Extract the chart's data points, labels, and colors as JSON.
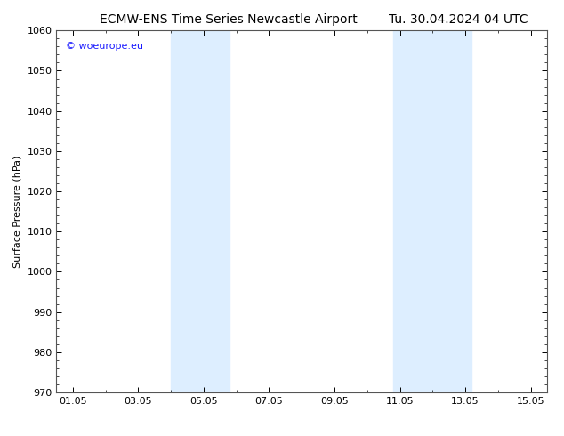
{
  "title_left": "ECMW-ENS Time Series Newcastle Airport",
  "title_right": "Tu. 30.04.2024 04 UTC",
  "ylabel": "Surface Pressure (hPa)",
  "ylim": [
    970,
    1060
  ],
  "yticks": [
    970,
    980,
    990,
    1000,
    1010,
    1020,
    1030,
    1040,
    1050,
    1060
  ],
  "xlim": [
    0.5,
    15.5
  ],
  "xtick_labels": [
    "01.05",
    "03.05",
    "05.05",
    "07.05",
    "09.05",
    "11.05",
    "13.05",
    "15.05"
  ],
  "xtick_positions": [
    1,
    3,
    5,
    7,
    9,
    11,
    13,
    15
  ],
  "shaded_regions": [
    {
      "xstart": 4.0,
      "xend": 5.8
    },
    {
      "xstart": 10.8,
      "xend": 13.2
    }
  ],
  "shaded_color": "#ddeeff",
  "background_color": "#ffffff",
  "plot_bg_color": "#ffffff",
  "border_color": "#555555",
  "watermark_text": "© woeurope.eu",
  "watermark_color": "#1a1aff",
  "title_fontsize": 10,
  "axis_fontsize": 8,
  "tick_fontsize": 8
}
